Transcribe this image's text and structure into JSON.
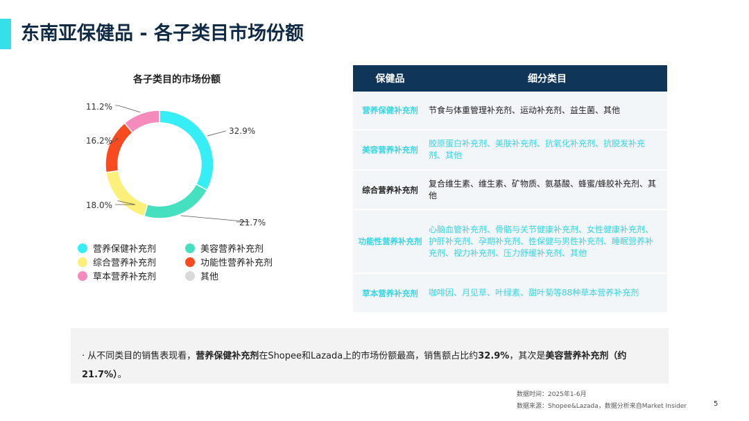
{
  "page": {
    "title": "东南亚保健品 - 各子类目市场份额",
    "page_number": "5"
  },
  "chart_data": {
    "type": "pie",
    "title": "各子类目的市场份额",
    "series": [
      {
        "name": "营养保健补充剂",
        "value": 32.9,
        "label": "32.9%",
        "color": "#36eef5"
      },
      {
        "name": "美容营养补充剂",
        "value": 21.7,
        "label": "21.7%",
        "color": "#45e0c0"
      },
      {
        "name": "综合营养补充剂",
        "value": 18.0,
        "label": "18.0%",
        "color": "#fdf07a"
      },
      {
        "name": "功能性营养补充剂",
        "value": 16.2,
        "label": "16.2%",
        "color": "#fa4a1f"
      },
      {
        "name": "草本营养补充剂",
        "value": 11.2,
        "label": "11.2%",
        "color": "#f58bbd"
      },
      {
        "name": "其他",
        "value": 0,
        "label": "",
        "color": "#d9d9d9"
      }
    ],
    "legend": "bottom"
  },
  "table": {
    "headers": [
      "保健品",
      "细分类目"
    ],
    "rows": [
      {
        "category": "营养保健补充剂",
        "subcategories": "节食与体重管理补充剂、运动补充剂、益生菌、其他"
      },
      {
        "category": "美容营养补充剂",
        "subcategories": "胶原蛋白补充剂、美肤补充剂、抗氧化补充剂、抗脱发补充剂、其他"
      },
      {
        "category": "综合营养补充剂",
        "subcategories": "复合维生素、维生素、矿物质、氨基酸、蜂蜜/蜂胶补充剂、其他"
      },
      {
        "category": "功能性营养补充剂",
        "subcategories": "心脑血管补充剂、骨骼与关节健康补充剂、女性健康补充剂、护肝补充剂、孕期补充剂、性保健与男性补充剂、睡眠营养补充剂、视力补充剂、压力舒缓补充剂、其他"
      },
      {
        "category": "草本营养补充剂",
        "subcategories": "咖啡因、月见草、叶绿素、甜叶菊等88种草本营养补充剂"
      }
    ]
  },
  "note": {
    "bullet": "·",
    "p1": "从不同类目的销售表现看，",
    "b1": "营养保健补充剂",
    "p2": "在Shopee和Lazada上的市场份额最高，销售额占比约",
    "b2": "32.9%",
    "p3": "，其次是",
    "b3": "美容营养补充剂（约21.7%）",
    "p4": "。"
  },
  "footer": {
    "date": "数据时间：2025年1-6月",
    "source": "数据来源：Shopee&Lazada，数据分析来自Market Insider"
  }
}
